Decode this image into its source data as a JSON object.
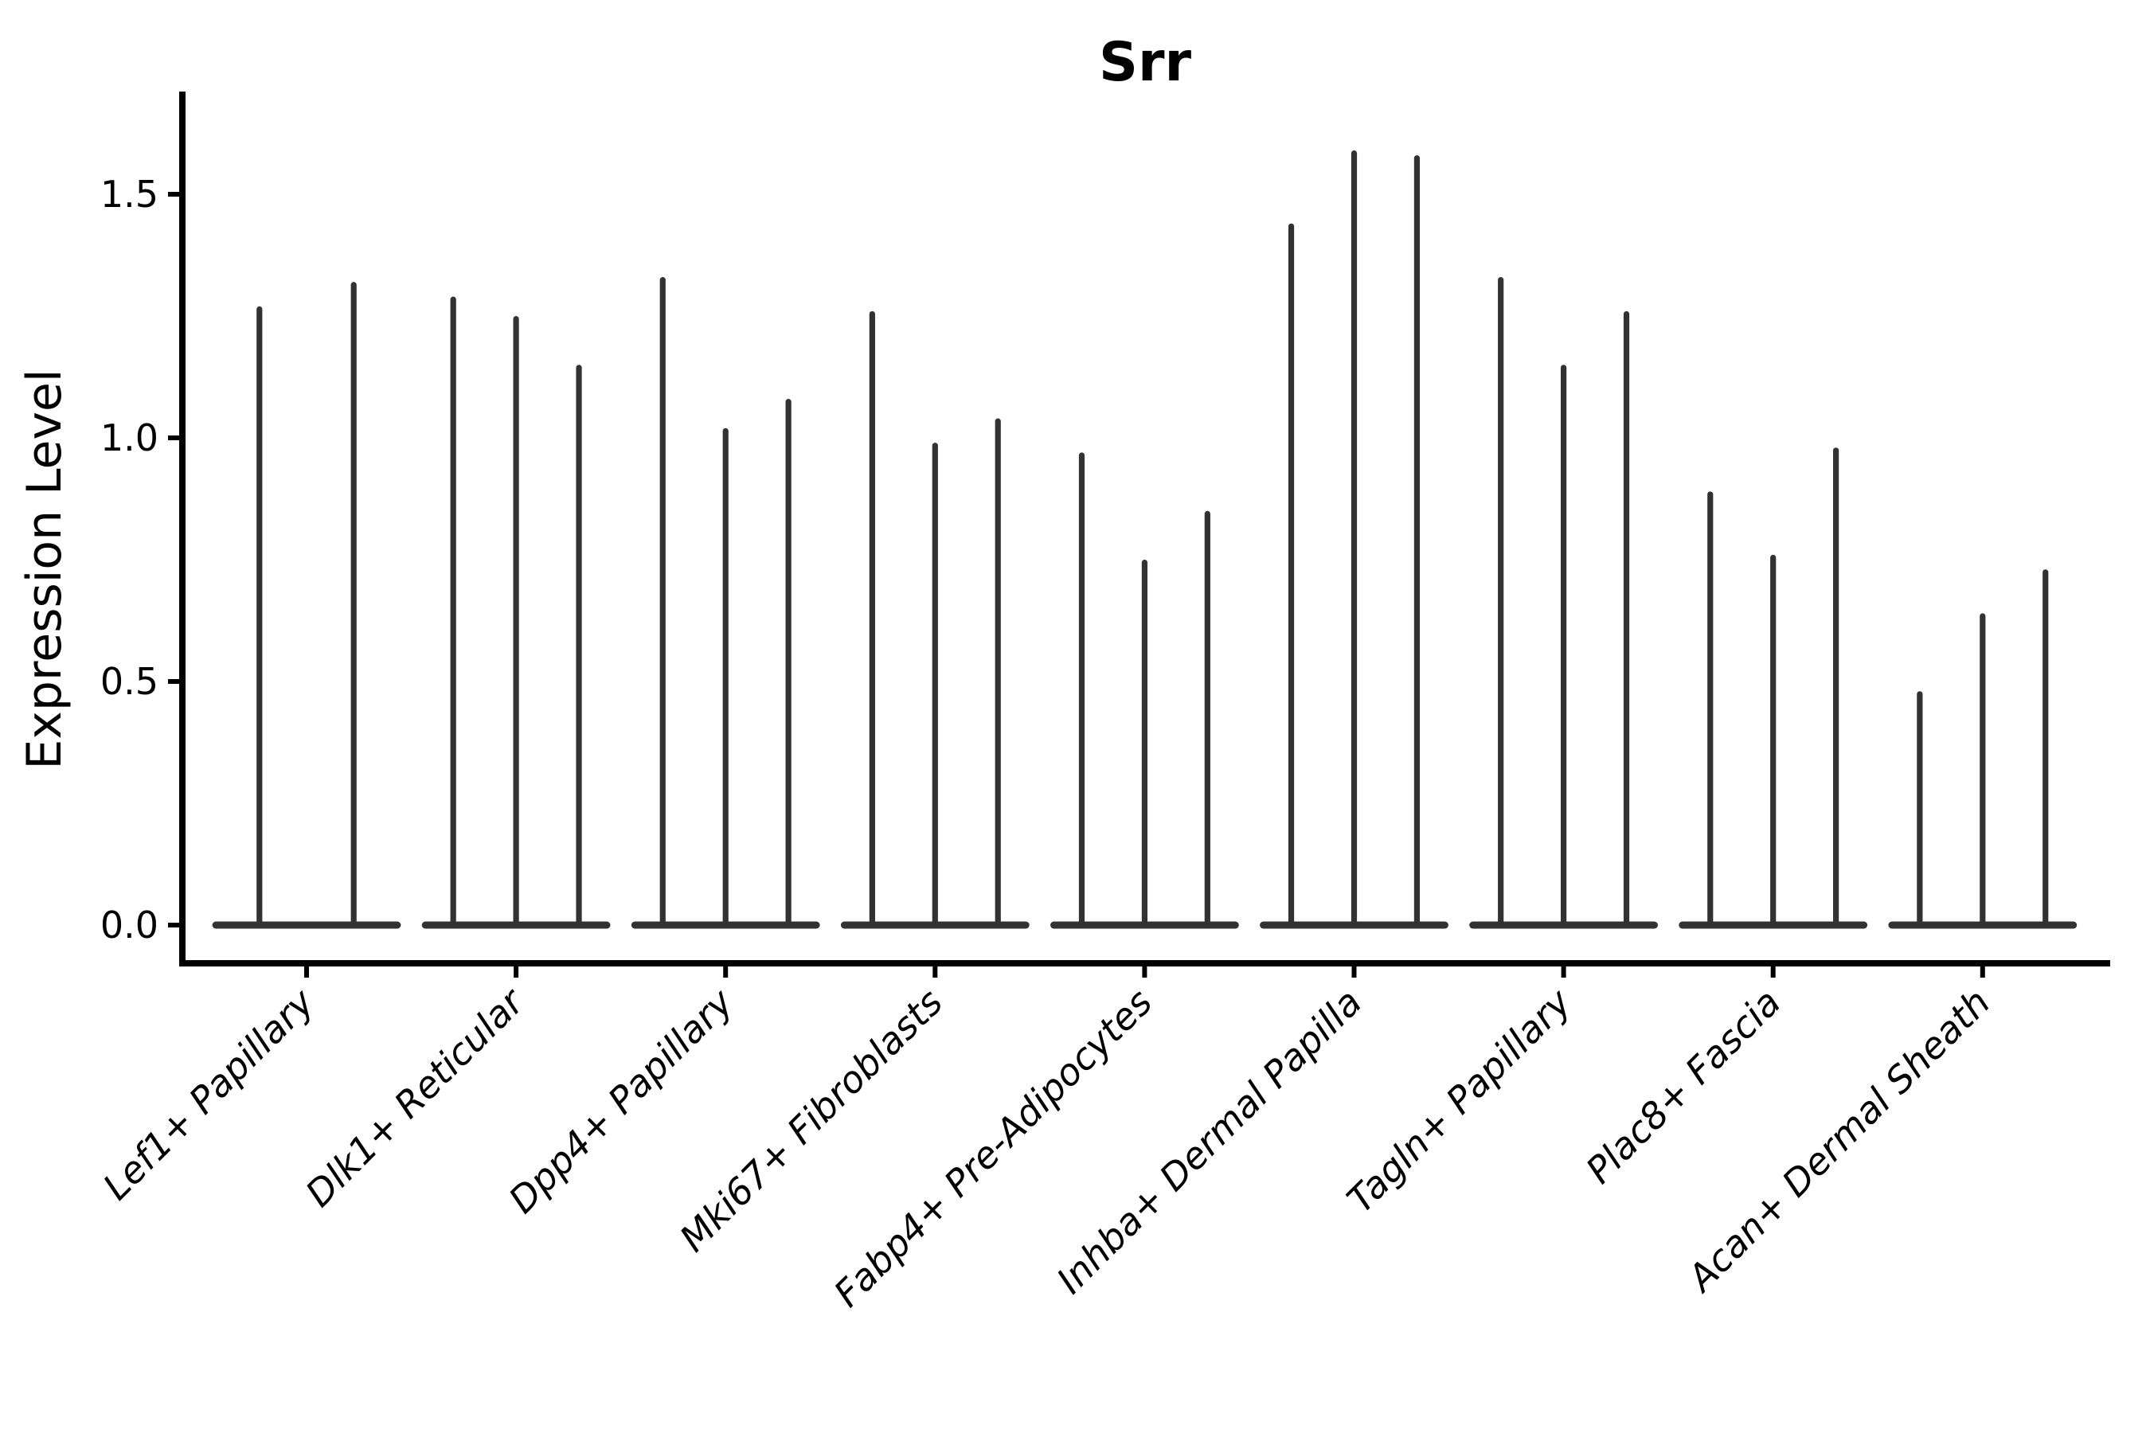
{
  "title": "Srr",
  "colors": {
    "violin_ink": "#323232",
    "axis": "#000000",
    "text": "#000000",
    "background": "#ffffff"
  },
  "chart_data": {
    "type": "violin",
    "title": "Srr",
    "xlabel": "",
    "ylabel": "Expression Level",
    "yticks": [
      0.0,
      0.5,
      1.0,
      1.5
    ],
    "ytick_labels": [
      "0.0",
      "0.5",
      "1.0",
      "1.5"
    ],
    "ylim": [
      -0.08,
      1.71
    ],
    "grid": false,
    "legend": null,
    "style": "thin-spike violins; bulk of density flattened at 0 with narrow tails reaching each listed maximum",
    "x_tick_rotation_deg": 45,
    "categories": [
      "Lef1+ Papillary",
      "Dlk1+ Reticular",
      "Dpp4+ Papillary",
      "Mki67+ Fibroblasts",
      "Fabp4+ Pre-Adipocytes",
      "Inhba+ Dermal Papilla",
      "Tagln+ Papillary",
      "Plac8+ Fascia",
      "Acan+ Dermal Sheath"
    ],
    "series": [
      {
        "category": "Lef1+ Papillary",
        "violin_max_expression": [
          1.27,
          1.32
        ]
      },
      {
        "category": "Dlk1+ Reticular",
        "violin_max_expression": [
          1.29,
          1.25,
          1.15
        ]
      },
      {
        "category": "Dpp4+ Papillary",
        "violin_max_expression": [
          1.33,
          1.02,
          1.08
        ]
      },
      {
        "category": "Mki67+ Fibroblasts",
        "violin_max_expression": [
          1.26,
          0.99,
          1.04
        ]
      },
      {
        "category": "Fabp4+ Pre-Adipocytes",
        "violin_max_expression": [
          0.97,
          0.75,
          0.85
        ]
      },
      {
        "category": "Inhba+ Dermal Papilla",
        "violin_max_expression": [
          1.44,
          1.59,
          1.58
        ]
      },
      {
        "category": "Tagln+ Papillary",
        "violin_max_expression": [
          1.33,
          1.15,
          1.26
        ]
      },
      {
        "category": "Plac8+ Fascia",
        "violin_max_expression": [
          0.89,
          0.76,
          0.98
        ]
      },
      {
        "category": "Acan+ Dermal Sheath",
        "violin_max_expression": [
          0.48,
          0.64,
          0.73
        ]
      }
    ]
  }
}
